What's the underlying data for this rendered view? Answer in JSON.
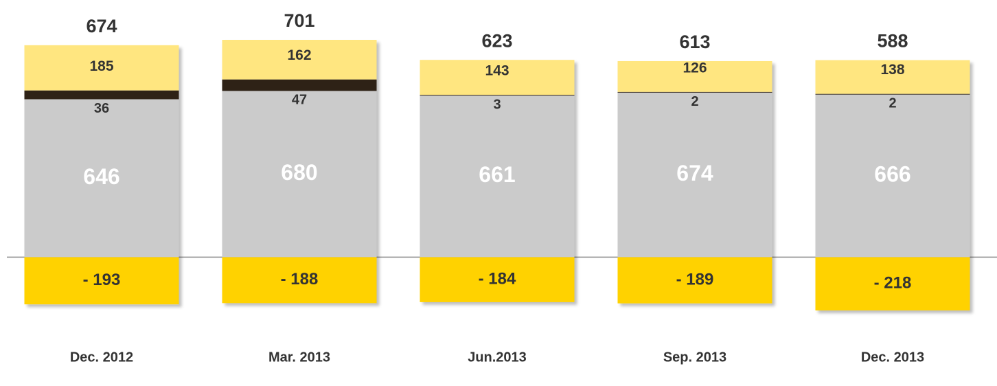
{
  "chart_data": {
    "type": "stacked_bar",
    "categories": [
      "Dec. 2012",
      "Mar. 2013",
      "Jun.2013",
      "Sep. 2013",
      "Dec. 2013"
    ],
    "series": [
      {
        "color": "#cbcbcb",
        "values": [
          646,
          680,
          661,
          674,
          666
        ]
      },
      {
        "color": "#2e2416",
        "values": [
          36,
          47,
          3,
          2,
          2
        ]
      },
      {
        "color": "#ffe680",
        "values": [
          185,
          162,
          143,
          126,
          138
        ]
      },
      {
        "color": "#ffd200",
        "values": [
          -193,
          -188,
          -184,
          -189,
          -218
        ],
        "value_labels": [
          "- 193",
          "- 188",
          "- 184",
          "- 189",
          "- 218"
        ]
      }
    ],
    "totals": [
      674,
      701,
      623,
      613,
      588
    ]
  }
}
